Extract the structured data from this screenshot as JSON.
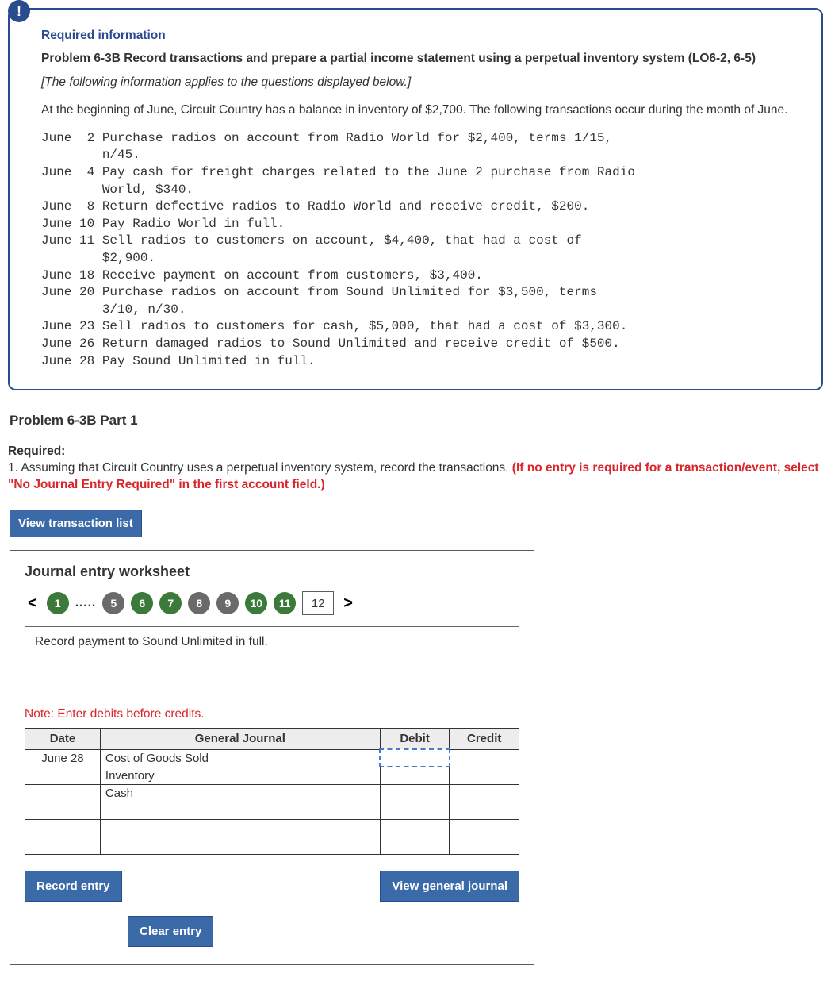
{
  "info": {
    "badge": "!",
    "title": "Required information",
    "problem_title": "Problem 6-3B Record transactions and prepare a partial income statement using a perpetual inventory system (LO6-2, 6-5)",
    "applies": "[The following information applies to the questions displayed below.]",
    "opening": "At the beginning of June, Circuit Country has a balance in inventory of $2,700. The following transactions occur during the month of June.",
    "transactions_text": "June  2 Purchase radios on account from Radio World for $2,400, terms 1/15,\n        n/45.\nJune  4 Pay cash for freight charges related to the June 2 purchase from Radio\n        World, $340.\nJune  8 Return defective radios to Radio World and receive credit, $200.\nJune 10 Pay Radio World in full.\nJune 11 Sell radios to customers on account, $4,400, that had a cost of\n        $2,900.\nJune 18 Receive payment on account from customers, $3,400.\nJune 20 Purchase radios on account from Sound Unlimited for $3,500, terms\n        3/10, n/30.\nJune 23 Sell radios to customers for cash, $5,000, that had a cost of $3,300.\nJune 26 Return damaged radios to Sound Unlimited and receive credit of $500.\nJune 28 Pay Sound Unlimited in full."
  },
  "part": {
    "title": "Problem 6-3B Part 1",
    "required_label": "Required:",
    "required_prefix": "1. Assuming that Circuit Country uses a perpetual inventory system, record the transactions. ",
    "required_emph": "(If no entry is required for a transaction/event, select \"No Journal Entry Required\" in the first account field.)"
  },
  "view_txn_button": "View transaction list",
  "worksheet": {
    "title": "Journal entry worksheet",
    "pager": {
      "prev": "<",
      "next": ">",
      "dots": ".....",
      "items": [
        {
          "label": "1",
          "bg": "#3b7a3b"
        },
        {
          "label": "5",
          "bg": "#6a6a6a"
        },
        {
          "label": "6",
          "bg": "#3b7a3b"
        },
        {
          "label": "7",
          "bg": "#3b7a3b"
        },
        {
          "label": "8",
          "bg": "#6a6a6a"
        },
        {
          "label": "9",
          "bg": "#6a6a6a"
        },
        {
          "label": "10",
          "bg": "#3b7a3b"
        },
        {
          "label": "11",
          "bg": "#3b7a3b"
        }
      ],
      "current": "12"
    },
    "instruction": "Record payment to Sound Unlimited in full.",
    "note": "Note: Enter debits before credits.",
    "table": {
      "headers": {
        "date": "Date",
        "journal": "General Journal",
        "debit": "Debit",
        "credit": "Credit"
      },
      "rows": [
        {
          "date": "June 28",
          "account": "Cost of Goods Sold",
          "debit": "",
          "credit": ""
        },
        {
          "date": "",
          "account": "Inventory",
          "debit": "",
          "credit": ""
        },
        {
          "date": "",
          "account": "Cash",
          "debit": "",
          "credit": ""
        },
        {
          "date": "",
          "account": "",
          "debit": "",
          "credit": ""
        },
        {
          "date": "",
          "account": "",
          "debit": "",
          "credit": ""
        },
        {
          "date": "",
          "account": "",
          "debit": "",
          "credit": ""
        }
      ]
    },
    "buttons": {
      "record": "Record entry",
      "clear": "Clear entry",
      "view_gj": "View general journal"
    }
  }
}
